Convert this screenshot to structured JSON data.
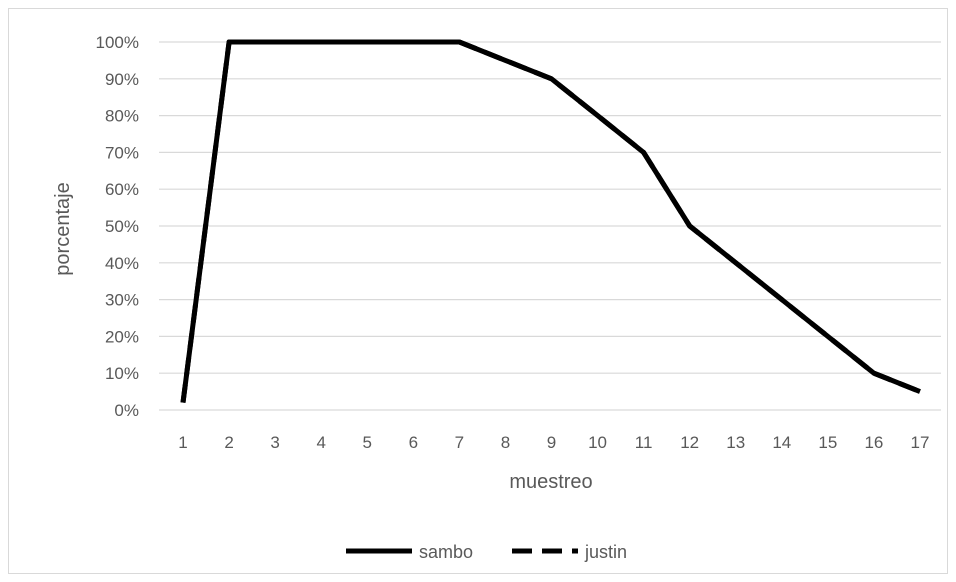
{
  "chart_data": {
    "type": "line",
    "title": "",
    "xlabel": "muestreo",
    "ylabel": "porcentaje",
    "categories": [
      "1",
      "2",
      "3",
      "4",
      "5",
      "6",
      "7",
      "8",
      "9",
      "10",
      "11",
      "12",
      "13",
      "14",
      "15",
      "16",
      "17"
    ],
    "y_ticks": [
      "0%",
      "10%",
      "20%",
      "30%",
      "40%",
      "50%",
      "60%",
      "70%",
      "80%",
      "90%",
      "100%"
    ],
    "ylim": [
      0,
      100
    ],
    "y_unit": "%",
    "grid": "horizontal",
    "legend_position": "bottom",
    "series": [
      {
        "name": "sambo",
        "style": "solid",
        "color": "#000000",
        "values": [
          2,
          100,
          100,
          100,
          100,
          100,
          100,
          95,
          90,
          80,
          70,
          50,
          40,
          30,
          20,
          10,
          5
        ]
      },
      {
        "name": "justin",
        "style": "dashed",
        "color": "#000000",
        "values": [
          2,
          100,
          100,
          100,
          100,
          100,
          100,
          95,
          90,
          80,
          70,
          50,
          40,
          30,
          20,
          10,
          5
        ]
      }
    ]
  }
}
